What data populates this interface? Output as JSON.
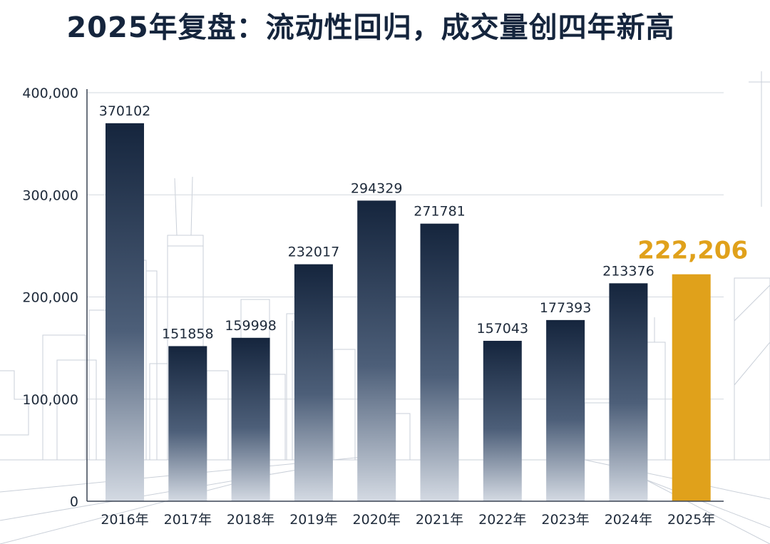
{
  "chart_data": {
    "type": "bar",
    "title": "2025年复盘：流动性回归，成交量创四年新高",
    "xlabel": "",
    "ylabel": "",
    "ylim": [
      0,
      400000
    ],
    "yticks": [
      0,
      100000,
      200000,
      300000,
      400000
    ],
    "ytick_labels": [
      "0",
      "100,000",
      "200,000",
      "300,000",
      "400,000"
    ],
    "categories": [
      "2016年",
      "2017年",
      "2018年",
      "2019年",
      "2020年",
      "2021年",
      "2022年",
      "2023年",
      "2024年",
      "2025年"
    ],
    "values": [
      370102,
      151858,
      159998,
      232017,
      294329,
      271781,
      157043,
      177393,
      213376,
      222206
    ],
    "value_labels": [
      "370102",
      "151858",
      "159998",
      "232017",
      "294329",
      "271781",
      "157043",
      "177393",
      "213376",
      "222,206"
    ],
    "highlight_index": 9,
    "grid": true
  },
  "colors": {
    "bar_top": "#15253d",
    "bar_bottom": "#d4dae3",
    "highlight": "#e0a11b",
    "title": "#15253d"
  }
}
